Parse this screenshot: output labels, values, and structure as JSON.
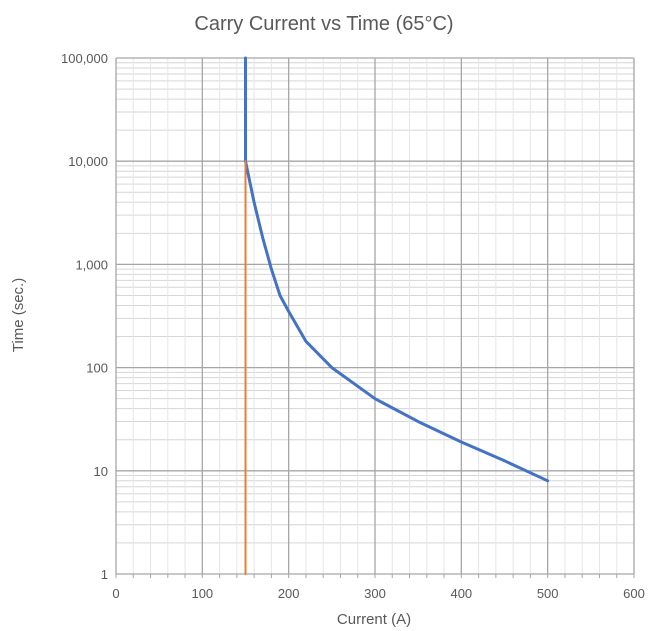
{
  "chart_data": {
    "type": "line",
    "title": "Carry  Current vs Time (65°C)",
    "xlabel": "Current (A)",
    "ylabel": "Time (sec.)",
    "x_scale": "linear",
    "y_scale": "log",
    "xlim": [
      0,
      600
    ],
    "ylim": [
      1,
      100000
    ],
    "x_ticks": [
      0,
      100,
      200,
      300,
      400,
      500,
      600
    ],
    "x_tick_labels": [
      "0",
      "100",
      "200",
      "300",
      "400",
      "500",
      "600"
    ],
    "y_ticks": [
      1,
      10,
      100,
      1000,
      10000,
      100000
    ],
    "y_tick_labels": [
      "1",
      "10",
      "100",
      "1,000",
      "10,000",
      "100,000"
    ],
    "grid": true,
    "legend": "none",
    "series": [
      {
        "color": "#4472C4",
        "x": [
          150,
          150,
          160,
          170,
          180,
          190,
          200,
          220,
          250,
          300,
          350,
          400,
          450,
          500
        ],
        "y": [
          100000,
          10000,
          4000,
          1800,
          900,
          500,
          350,
          180,
          100,
          50,
          30,
          19,
          12.5,
          8
        ]
      },
      {
        "color": "#ED7D31",
        "x": [
          150,
          150
        ],
        "y": [
          1,
          10000
        ]
      }
    ]
  }
}
